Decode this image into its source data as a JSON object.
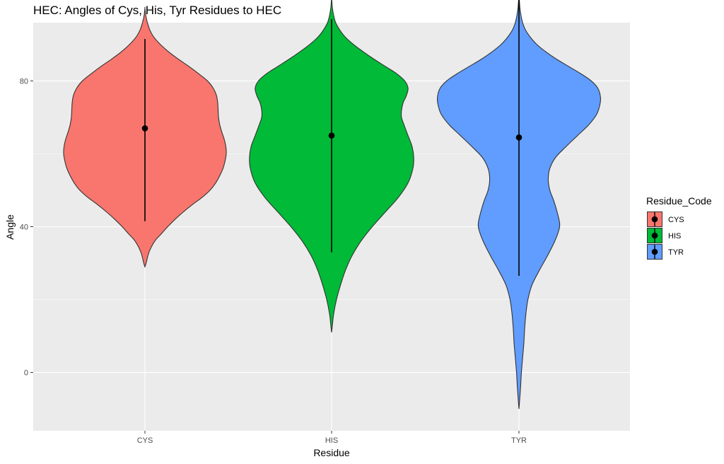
{
  "chart_data": {
    "type": "violin",
    "title": "HEC: Angles of Cys, His, Tyr Residues to HEC",
    "xlabel": "Residue",
    "ylabel": "Angle",
    "ylim": [
      -16,
      96
    ],
    "y_ticks": [
      0,
      40,
      80
    ],
    "y_tick_labels": [
      "0",
      "40",
      "80"
    ],
    "grid": true,
    "legend": {
      "title": "Residue_Code",
      "position": "right"
    },
    "categories": [
      "CYS",
      "HIS",
      "TYR"
    ],
    "series": [
      {
        "name": "CYS",
        "color": "#F8766D",
        "mean": 67,
        "ymin": 41.5,
        "ymax": 91.5,
        "density": [
          [
            29,
            0.0
          ],
          [
            30,
            0.015
          ],
          [
            33,
            0.05
          ],
          [
            36,
            0.12
          ],
          [
            38,
            0.2
          ],
          [
            40,
            0.28
          ],
          [
            42,
            0.37
          ],
          [
            44,
            0.47
          ],
          [
            46,
            0.58
          ],
          [
            48,
            0.7
          ],
          [
            50,
            0.8
          ],
          [
            52,
            0.87
          ],
          [
            54,
            0.92
          ],
          [
            56,
            0.96
          ],
          [
            58,
            0.985
          ],
          [
            60,
            1.0
          ],
          [
            62,
            0.995
          ],
          [
            64,
            0.975
          ],
          [
            66,
            0.945
          ],
          [
            68,
            0.92
          ],
          [
            70,
            0.905
          ],
          [
            72,
            0.9
          ],
          [
            74,
            0.895
          ],
          [
            76,
            0.88
          ],
          [
            78,
            0.84
          ],
          [
            80,
            0.77
          ],
          [
            82,
            0.66
          ],
          [
            84,
            0.54
          ],
          [
            86,
            0.41
          ],
          [
            88,
            0.29
          ],
          [
            90,
            0.19
          ],
          [
            92,
            0.11
          ],
          [
            94,
            0.06
          ],
          [
            96,
            0.03
          ],
          [
            98,
            0.01
          ],
          [
            100,
            0.0
          ]
        ]
      },
      {
        "name": "HIS",
        "color": "#00BA38",
        "mean": 65,
        "ymin": 33,
        "ymax": 97,
        "density": [
          [
            11,
            0.0
          ],
          [
            13,
            0.01
          ],
          [
            16,
            0.025
          ],
          [
            20,
            0.06
          ],
          [
            24,
            0.11
          ],
          [
            28,
            0.17
          ],
          [
            32,
            0.25
          ],
          [
            36,
            0.36
          ],
          [
            40,
            0.5
          ],
          [
            44,
            0.66
          ],
          [
            48,
            0.82
          ],
          [
            52,
            0.94
          ],
          [
            56,
            1.0
          ],
          [
            59,
            1.01
          ],
          [
            62,
            0.99
          ],
          [
            65,
            0.94
          ],
          [
            68,
            0.89
          ],
          [
            70,
            0.86
          ],
          [
            72,
            0.86
          ],
          [
            74,
            0.88
          ],
          [
            76,
            0.92
          ],
          [
            78,
            0.94
          ],
          [
            80,
            0.9
          ],
          [
            82,
            0.8
          ],
          [
            84,
            0.66
          ],
          [
            86,
            0.52
          ],
          [
            88,
            0.39
          ],
          [
            90,
            0.27
          ],
          [
            92,
            0.17
          ],
          [
            94,
            0.1
          ],
          [
            96,
            0.05
          ],
          [
            98,
            0.025
          ],
          [
            100,
            0.01
          ],
          [
            102,
            0.003
          ],
          [
            103,
            0.0
          ]
        ]
      },
      {
        "name": "TYR",
        "color": "#619CFF",
        "mean": 64.5,
        "ymin": 26.5,
        "ymax": 102.5,
        "density": [
          [
            -10,
            0.0
          ],
          [
            -8,
            0.007
          ],
          [
            -4,
            0.02
          ],
          [
            0,
            0.03
          ],
          [
            4,
            0.045
          ],
          [
            8,
            0.06
          ],
          [
            12,
            0.07
          ],
          [
            16,
            0.085
          ],
          [
            20,
            0.11
          ],
          [
            24,
            0.16
          ],
          [
            28,
            0.25
          ],
          [
            32,
            0.35
          ],
          [
            36,
            0.44
          ],
          [
            39,
            0.49
          ],
          [
            41,
            0.5
          ],
          [
            44,
            0.47
          ],
          [
            47,
            0.43
          ],
          [
            50,
            0.38
          ],
          [
            53,
            0.36
          ],
          [
            56,
            0.38
          ],
          [
            59,
            0.45
          ],
          [
            62,
            0.58
          ],
          [
            65,
            0.72
          ],
          [
            68,
            0.86
          ],
          [
            71,
            0.96
          ],
          [
            74,
            1.0
          ],
          [
            76,
            1.0
          ],
          [
            78,
            0.97
          ],
          [
            80,
            0.89
          ],
          [
            82,
            0.76
          ],
          [
            84,
            0.61
          ],
          [
            86,
            0.46
          ],
          [
            88,
            0.33
          ],
          [
            90,
            0.22
          ],
          [
            92,
            0.14
          ],
          [
            94,
            0.08
          ],
          [
            96,
            0.045
          ],
          [
            98,
            0.025
          ],
          [
            100,
            0.012
          ],
          [
            102,
            0.005
          ],
          [
            103,
            0.0
          ]
        ]
      }
    ]
  }
}
